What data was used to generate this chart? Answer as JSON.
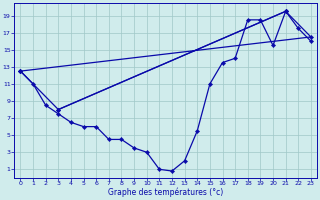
{
  "xlabel": "Graphe des températures (°c)",
  "x_ticks": [
    0,
    1,
    2,
    3,
    4,
    5,
    6,
    7,
    8,
    9,
    10,
    11,
    12,
    13,
    14,
    15,
    16,
    17,
    18,
    19,
    20,
    21,
    22,
    23
  ],
  "y_ticks": [
    1,
    3,
    5,
    7,
    9,
    11,
    13,
    15,
    17,
    19
  ],
  "xlim": [
    -0.5,
    23.5
  ],
  "ylim": [
    0.0,
    20.5
  ],
  "line_color": "#0a0aaa",
  "bg_color": "#d0ecec",
  "grid_color": "#a0c8c8",
  "main_temps": [
    12.5,
    11.0,
    8.5,
    7.5,
    6.5,
    6.0,
    6.0,
    4.5,
    4.5,
    3.5,
    3.0,
    1.0,
    0.8,
    2.0,
    5.5,
    11.0,
    13.5,
    14.0,
    18.5,
    18.5,
    15.5,
    19.5,
    17.5,
    16.0
  ],
  "line2_x": [
    0,
    3,
    21,
    23,
    0
  ],
  "line2_y": [
    12.5,
    8.0,
    19.5,
    16.5,
    12.5
  ],
  "line3_x": [
    3,
    21
  ],
  "line3_y": [
    8.0,
    19.5
  ]
}
